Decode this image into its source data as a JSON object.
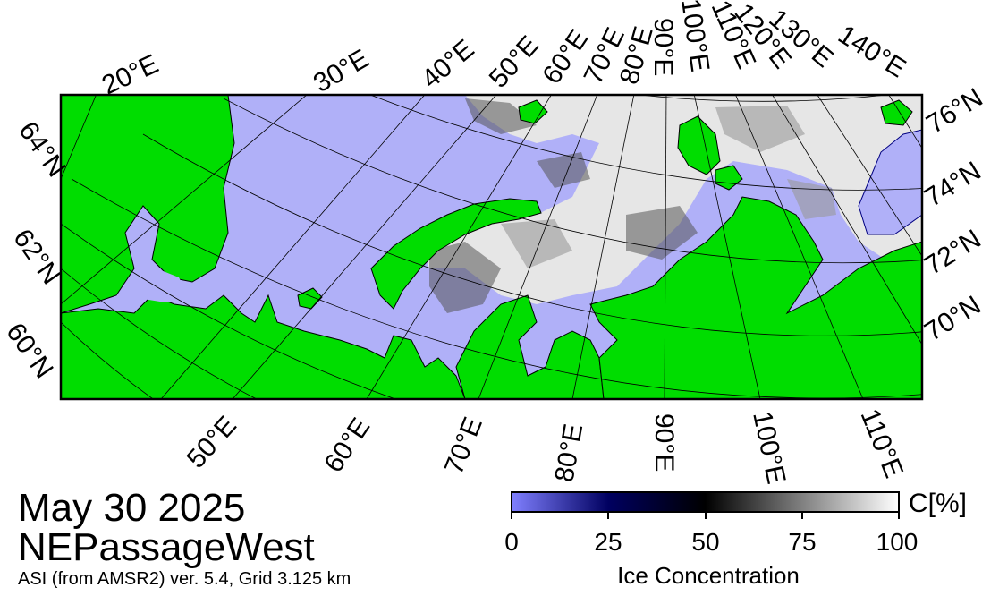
{
  "date": "May 30 2025",
  "region": "NEPassageWest",
  "product_info": "ASI (from AMSR2) ver. 5.4,  Grid 3.125 km",
  "colorbar": {
    "unit": "C[%]",
    "title": "Ice Concentration",
    "ticks": [
      "0",
      "25",
      "50",
      "75",
      "100"
    ],
    "colors": [
      "#8080ff",
      "#000060",
      "#000000",
      "#808080",
      "#ffffff"
    ]
  },
  "colors": {
    "land": "#00dd00",
    "open_water": "#b0b0f8",
    "ice": "#ffffff",
    "frame": "#000000"
  },
  "top_longitude_labels": [
    "20°E",
    "30°E",
    "40°E",
    "50°E",
    "60°E",
    "70°E",
    "80°E",
    "90°E",
    "100°E",
    "110°E",
    "120°E",
    "130°E",
    "140°E"
  ],
  "bottom_longitude_labels": [
    "50°E",
    "60°E",
    "70°E",
    "80°E",
    "90°E",
    "100°E",
    "110°E"
  ],
  "left_latitude_labels": [
    "64°N",
    "62°N",
    "60°N"
  ],
  "right_latitude_labels": [
    "76°N",
    "74°N",
    "72°N",
    "70°N"
  ]
}
